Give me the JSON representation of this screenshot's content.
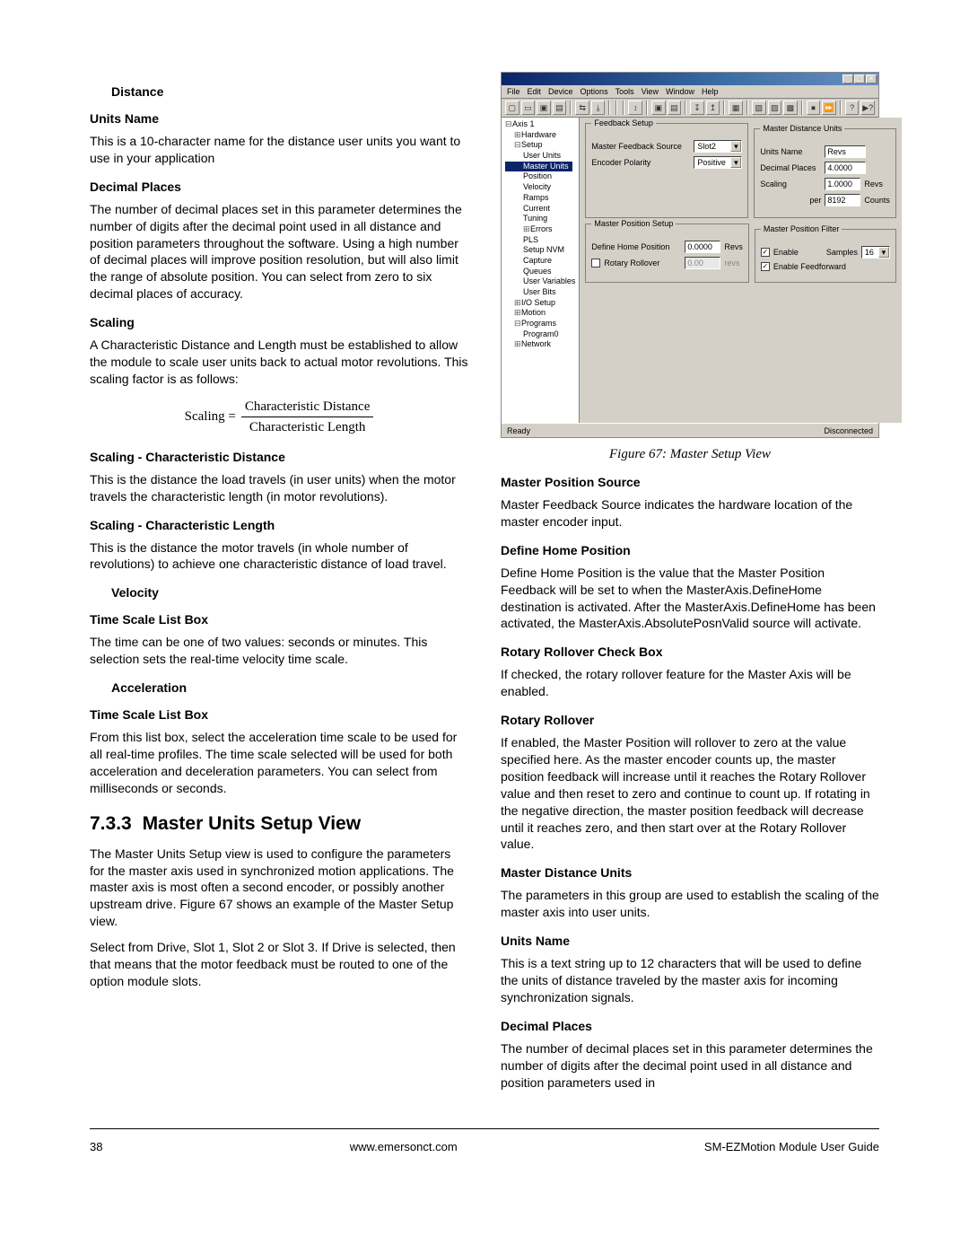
{
  "left": {
    "distance_title": "Distance",
    "units_name_h": "Units Name",
    "units_name_p": "This is a 10-character name for the distance user units you want to use in your application",
    "decimal_places_h": "Decimal Places",
    "decimal_places_p": "The number of decimal places set in this parameter determines the number of digits after the decimal point used in all distance and position parameters throughout the software. Using a high number of decimal places will improve position resolution, but will also limit the range of absolute position. You can select from zero to six decimal places of accuracy.",
    "scaling_h": "Scaling",
    "scaling_p": "A Characteristic Distance and Length must be established to allow the module to scale user units back to actual motor revolutions. This scaling factor is as follows:",
    "formula_lhs": "Scaling =",
    "formula_num": "Characteristic Distance",
    "formula_den": "Characteristic Length",
    "scd_h": "Scaling - Characteristic Distance",
    "scd_p": "This is the distance the load travels (in user units) when the motor travels the characteristic length (in motor revolutions).",
    "scl_h": "Scaling - Characteristic Length",
    "scl_p": "This is the distance the motor travels (in whole number of revolutions) to achieve one characteristic distance of load travel.",
    "velocity_title": "Velocity",
    "vel_tslb_h": "Time Scale List Box",
    "vel_tslb_p": "The time can be one of two values: seconds or minutes. This selection sets the real-time velocity time scale.",
    "accel_title": "Acceleration",
    "acc_tslb_h": "Time Scale List Box",
    "acc_tslb_p": "From this list box, select the acceleration time scale to be used for all real-time profiles. The time scale selected will be used for both acceleration and deceleration parameters. You can select from milliseconds or seconds.",
    "section_num": "7.3.3",
    "section_name": "Master Units Setup View",
    "master_p1": "The Master Units Setup view is used to configure the parameters for the master axis used in synchronized motion applications. The master axis is most often a second encoder, or possibly another upstream drive. Figure 67 shows an example of the Master Setup view.",
    "master_p2": "Select from Drive, Slot 1, Slot 2 or Slot 3. If Drive is selected, then that means that the motor feedback must be routed to one of the option module slots."
  },
  "right": {
    "fig_caption": "Figure 67:      Master Setup View",
    "mps_h": "Master Position Source",
    "mps_p": "Master Feedback Source indicates the hardware location of the master encoder input.",
    "dhp_h": "Define Home Position",
    "dhp_p": "Define Home Position is the value that the Master Position Feedback will be set to when the MasterAxis.DefineHome destination is activated. After the MasterAxis.DefineHome has been activated, the MasterAxis.AbsolutePosnValid source will activate.",
    "rrc_h": "Rotary Rollover Check Box",
    "rrc_p": "If checked, the rotary rollover feature for the Master Axis will be enabled.",
    "rr_h": "Rotary Rollover",
    "rr_p": "If enabled, the Master Position will rollover to zero at the value specified here. As the master encoder counts up, the master position feedback will increase until it reaches the Rotary Rollover value and then reset to zero and continue to count up. If rotating in the negative direction, the master position feedback will decrease until it reaches zero, and then start over at the Rotary Rollover value.",
    "mdu_h": "Master Distance Units",
    "mdu_p": "The parameters in this group are used to establish the scaling of the master axis into user units.",
    "un_h": "Units Name",
    "un_p": "This is a text string up to 12 characters that will be used to define the units of distance traveled by the master axis for incoming synchronization signals.",
    "dp_h": "Decimal Places",
    "dp_p": "The number of decimal places set in this parameter determines the number of digits after the decimal point used in all distance and position parameters used in"
  },
  "screenshot": {
    "title": "",
    "menu": [
      "File",
      "Edit",
      "Device",
      "Options",
      "Tools",
      "View",
      "Window",
      "Help"
    ],
    "toolbar_glyphs": [
      "▢",
      "▭",
      "▣",
      "▤",
      "",
      "⇆",
      "⤓",
      "",
      "",
      "",
      "↕",
      "",
      "▣",
      "▤",
      "",
      "↧",
      "↥",
      "",
      "▦",
      "",
      "▧",
      "▨",
      "▩",
      "",
      "⏹",
      "⏩",
      "",
      "?",
      "▶?"
    ],
    "tree": [
      {
        "l": 0,
        "t": "Axis 1",
        "icon": "⊟"
      },
      {
        "l": 1,
        "t": "Hardware",
        "icon": "⊞"
      },
      {
        "l": 1,
        "t": "Setup",
        "icon": "⊟"
      },
      {
        "l": 2,
        "t": "User Units"
      },
      {
        "l": 2,
        "t": "Master Units",
        "sel": true
      },
      {
        "l": 2,
        "t": "Position"
      },
      {
        "l": 2,
        "t": "Velocity"
      },
      {
        "l": 2,
        "t": "Ramps"
      },
      {
        "l": 2,
        "t": "Current"
      },
      {
        "l": 2,
        "t": "Tuning"
      },
      {
        "l": 2,
        "t": "Errors",
        "icon": "⊞"
      },
      {
        "l": 2,
        "t": "PLS"
      },
      {
        "l": 2,
        "t": "Setup NVM"
      },
      {
        "l": 2,
        "t": "Capture"
      },
      {
        "l": 2,
        "t": "Queues"
      },
      {
        "l": 2,
        "t": "User Variables"
      },
      {
        "l": 2,
        "t": "User Bits"
      },
      {
        "l": 1,
        "t": "I/O Setup",
        "icon": "⊞"
      },
      {
        "l": 1,
        "t": "Motion",
        "icon": "⊞"
      },
      {
        "l": 1,
        "t": "Programs",
        "icon": "⊟"
      },
      {
        "l": 2,
        "t": "Program0"
      },
      {
        "l": 1,
        "t": "Network",
        "icon": "⊞"
      }
    ],
    "feedback_setup": {
      "legend": "Feedback Setup",
      "mfs_label": "Master Feedback Source",
      "mfs_value": "Slot2",
      "ep_label": "Encoder Polarity",
      "ep_value": "Positive"
    },
    "mdu": {
      "legend": "Master Distance Units",
      "un_label": "Units Name",
      "un_value": "Revs",
      "dp_label": "Decimal Places",
      "dp_value": "4.0000",
      "scaling_label": "Scaling",
      "scaling_top": "1.0000",
      "scaling_top_unit": "Revs",
      "scaling_bot_label": "per",
      "scaling_bot": "8192",
      "scaling_bot_unit": "Counts"
    },
    "mps": {
      "legend": "Master Position Setup",
      "dhp_label": "Define Home Position",
      "dhp_value": "0.0000",
      "dhp_unit": "Revs",
      "rr_label": "Rotary Rollover",
      "rr_value": "0.00",
      "rr_unit": "revs"
    },
    "mpf": {
      "legend": "Master Position Filter",
      "enable_label": "Enable",
      "eff_label": "Enable Feedforward",
      "samples_label": "Samples",
      "samples_value": "16"
    },
    "status_left": "Ready",
    "status_right": "Disconnected"
  },
  "footer": {
    "page": "38",
    "center": "www.emersonct.com",
    "right": "SM-EZMotion Module User Guide"
  }
}
